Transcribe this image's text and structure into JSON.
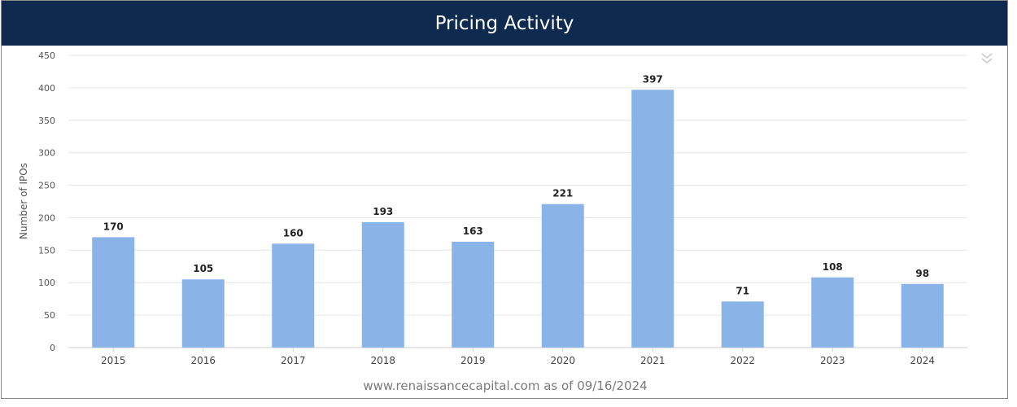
{
  "header": {
    "title": "Pricing Activity"
  },
  "footer": {
    "text": "www.renaissancecapital.com as of 09/16/2024"
  },
  "icons": {
    "expand": "double-chevron-down-icon"
  },
  "colors": {
    "header_bg": "#0e2a4e",
    "bar": "#8ab4e8",
    "grid": "#e6e6e6"
  },
  "chart_data": {
    "type": "bar",
    "categories": [
      "2015",
      "2016",
      "2017",
      "2018",
      "2019",
      "2020",
      "2021",
      "2022",
      "2023",
      "2024"
    ],
    "values": [
      170,
      105,
      160,
      193,
      163,
      221,
      397,
      71,
      108,
      98
    ],
    "title": "Pricing Activity",
    "xlabel": "",
    "ylabel": "Number of IPOs",
    "ylim": [
      0,
      450
    ],
    "yticks": [
      0,
      50,
      100,
      150,
      200,
      250,
      300,
      350,
      400,
      450
    ],
    "grid": true,
    "data_labels": true
  }
}
